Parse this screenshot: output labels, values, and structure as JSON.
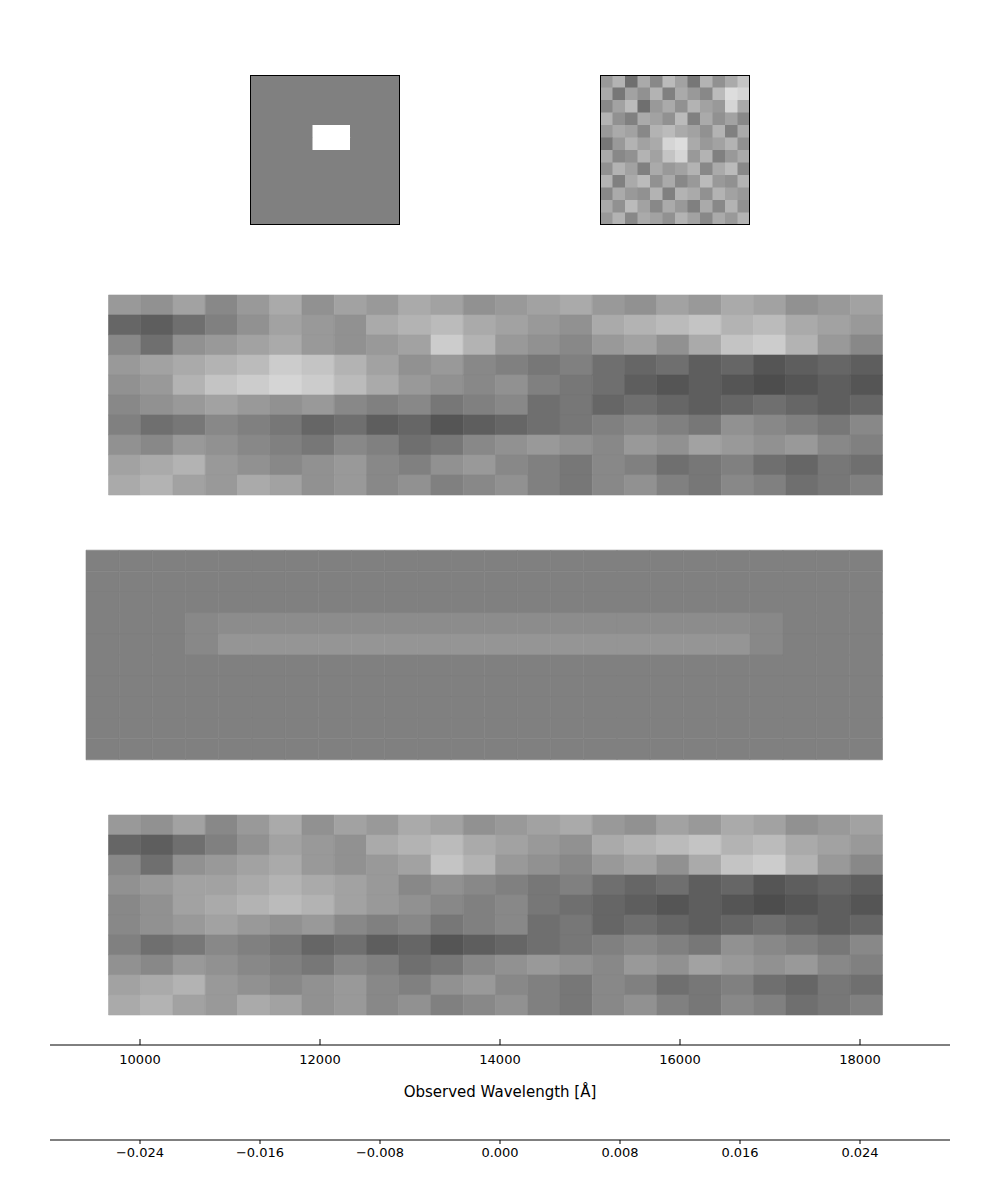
{
  "chart_data": [
    {
      "type": "image",
      "cells": [
        [
          0,
          0,
          0,
          0,
          0,
          0,
          0,
          0,
          0,
          0,
          0,
          0
        ],
        [
          0,
          0,
          0,
          0,
          0,
          0,
          0,
          0,
          0,
          0,
          0,
          0
        ],
        [
          0,
          0,
          0,
          0,
          0,
          0,
          0,
          0,
          0,
          0,
          0,
          0
        ],
        [
          0,
          0,
          0,
          0,
          0,
          0,
          0,
          0,
          0,
          0,
          0,
          0
        ],
        [
          0,
          0,
          0,
          0,
          0,
          0.03,
          0.03,
          0.03,
          0,
          0,
          0,
          0
        ],
        [
          0,
          0,
          0,
          0,
          0,
          0.03,
          0.03,
          0.03,
          0,
          0,
          0,
          0
        ],
        [
          0,
          0,
          0,
          0,
          0,
          0,
          0,
          0,
          0,
          0,
          0,
          0
        ],
        [
          0,
          0,
          0,
          0,
          0,
          0,
          0,
          0,
          0,
          0,
          0,
          0
        ],
        [
          0,
          0,
          0,
          0,
          0,
          0,
          0,
          0,
          0,
          0,
          0,
          0
        ],
        [
          0,
          0,
          0,
          0,
          0,
          0,
          0,
          0,
          0,
          0,
          0,
          0
        ],
        [
          0,
          0,
          0,
          0,
          0,
          0,
          0,
          0,
          0,
          0,
          0,
          0
        ],
        [
          0,
          0,
          0,
          0,
          0,
          0,
          0,
          0,
          0,
          0,
          0,
          0
        ]
      ]
    },
    {
      "type": "image",
      "cells": [
        [
          0.006,
          0.012,
          -0.004,
          0.01,
          0.002,
          0.014,
          0.008,
          -0.002,
          0.012,
          0.004,
          0.01,
          0.016
        ],
        [
          0.01,
          -0.002,
          0.008,
          0.004,
          0.012,
          0.0,
          0.01,
          0.006,
          0.002,
          0.014,
          0.022,
          0.02
        ],
        [
          0.002,
          0.008,
          0.014,
          -0.004,
          0.006,
          0.01,
          0.004,
          0.012,
          0.008,
          0.006,
          0.02,
          0.01
        ],
        [
          0.012,
          0.004,
          0.0,
          0.01,
          0.008,
          0.004,
          0.014,
          0.0,
          0.01,
          0.004,
          0.008,
          0.002
        ],
        [
          0.006,
          0.01,
          0.008,
          0.002,
          0.012,
          0.014,
          0.01,
          0.008,
          0.004,
          0.012,
          0.0,
          0.01
        ],
        [
          -0.002,
          0.006,
          0.012,
          0.008,
          0.01,
          0.02,
          0.022,
          0.01,
          0.006,
          0.008,
          0.012,
          0.004
        ],
        [
          0.01,
          0.002,
          0.004,
          0.012,
          0.008,
          0.016,
          0.02,
          0.006,
          0.012,
          0.0,
          0.006,
          0.01
        ],
        [
          0.004,
          0.012,
          0.008,
          0.0,
          0.01,
          0.006,
          0.008,
          0.012,
          0.002,
          0.01,
          0.014,
          0.002
        ],
        [
          0.012,
          0.0,
          0.01,
          0.014,
          0.004,
          0.01,
          0.002,
          0.006,
          0.014,
          0.006,
          0.004,
          0.012
        ],
        [
          0.002,
          0.01,
          0.006,
          0.004,
          0.012,
          0.0,
          0.012,
          0.01,
          0.004,
          0.012,
          0.008,
          0.006
        ],
        [
          0.01,
          0.004,
          0.014,
          0.008,
          0.002,
          0.01,
          0.006,
          0.0,
          0.01,
          0.002,
          0.012,
          0.004
        ],
        [
          0.006,
          0.012,
          0.002,
          0.01,
          0.008,
          0.004,
          0.012,
          0.008,
          0.002,
          0.01,
          0.006,
          0.012
        ]
      ]
    },
    {
      "type": "heatmap",
      "xlim": [
        9000,
        19000
      ],
      "xticks": [
        10000,
        12000,
        14000,
        16000,
        18000
      ],
      "extent": [
        9650,
        18250
      ],
      "tick_labels": false,
      "cells": [
        [
          0.006,
          0.004,
          0.008,
          0.002,
          0.006,
          0.01,
          0.004,
          0.008,
          0.006,
          0.01,
          0.008,
          0.004,
          0.006,
          0.008,
          0.01,
          0.006,
          0.004,
          0.008,
          0.006,
          0.01,
          0.008,
          0.004,
          0.006,
          0.008
        ],
        [
          -0.006,
          -0.008,
          -0.004,
          0.0,
          0.004,
          0.008,
          0.006,
          0.004,
          0.01,
          0.012,
          0.014,
          0.01,
          0.008,
          0.006,
          0.004,
          0.01,
          0.012,
          0.014,
          0.016,
          0.012,
          0.014,
          0.01,
          0.008,
          0.006
        ],
        [
          0.002,
          -0.004,
          0.004,
          0.006,
          0.008,
          0.01,
          0.006,
          0.004,
          0.006,
          0.008,
          0.018,
          0.012,
          0.006,
          0.004,
          0.002,
          0.006,
          0.008,
          0.004,
          0.01,
          0.016,
          0.018,
          0.012,
          0.006,
          0.002
        ],
        [
          0.006,
          0.008,
          0.01,
          0.012,
          0.014,
          0.018,
          0.016,
          0.012,
          0.008,
          0.004,
          0.006,
          0.002,
          0.0,
          -0.002,
          0.0,
          -0.004,
          -0.006,
          -0.004,
          -0.008,
          -0.006,
          -0.01,
          -0.008,
          -0.006,
          -0.008
        ],
        [
          0.004,
          0.006,
          0.012,
          0.016,
          0.018,
          0.02,
          0.018,
          0.014,
          0.01,
          0.006,
          0.004,
          0.002,
          0.004,
          0.0,
          -0.002,
          -0.004,
          -0.008,
          -0.01,
          -0.008,
          -0.01,
          -0.012,
          -0.01,
          -0.008,
          -0.01
        ],
        [
          0.002,
          0.004,
          0.006,
          0.008,
          0.006,
          0.004,
          0.006,
          0.002,
          0.0,
          0.002,
          -0.002,
          0.0,
          0.002,
          -0.004,
          -0.002,
          -0.006,
          -0.004,
          -0.006,
          -0.008,
          -0.006,
          -0.004,
          -0.006,
          -0.008,
          -0.006
        ],
        [
          0.0,
          -0.004,
          -0.002,
          0.002,
          0.0,
          -0.002,
          -0.006,
          -0.004,
          -0.008,
          -0.006,
          -0.01,
          -0.008,
          -0.006,
          -0.004,
          -0.002,
          0.0,
          0.002,
          0.0,
          -0.002,
          0.004,
          0.002,
          0.0,
          -0.002,
          0.002
        ],
        [
          0.004,
          0.002,
          0.006,
          0.004,
          0.002,
          0.0,
          -0.002,
          0.002,
          0.0,
          -0.004,
          -0.002,
          0.002,
          0.004,
          0.006,
          0.004,
          0.002,
          0.006,
          0.004,
          0.008,
          0.006,
          0.004,
          0.006,
          0.002,
          0.0
        ],
        [
          0.008,
          0.01,
          0.012,
          0.006,
          0.004,
          0.002,
          0.004,
          0.006,
          0.002,
          0.0,
          0.004,
          0.006,
          0.002,
          0.0,
          -0.002,
          0.002,
          0.0,
          -0.004,
          -0.002,
          0.0,
          -0.004,
          -0.006,
          -0.002,
          -0.004
        ],
        [
          0.01,
          0.012,
          0.008,
          0.006,
          0.01,
          0.008,
          0.004,
          0.006,
          0.002,
          0.004,
          0.0,
          0.002,
          0.004,
          0.0,
          -0.002,
          0.002,
          0.004,
          0.0,
          -0.002,
          0.002,
          0.0,
          -0.004,
          -0.002,
          0.0
        ]
      ]
    },
    {
      "type": "heatmap",
      "xlim": [
        9000,
        19000
      ],
      "xticks": [
        10000,
        12000,
        14000,
        16000,
        18000
      ],
      "extent": [
        9400,
        18250
      ],
      "tick_labels": false,
      "cells": [
        [
          0,
          0,
          0,
          0,
          0,
          0,
          0,
          0,
          0,
          0,
          0,
          0,
          0,
          0,
          0,
          0,
          0,
          0,
          0,
          0,
          0,
          0,
          0,
          0
        ],
        [
          0,
          0,
          0,
          0,
          0,
          0,
          0,
          0,
          0,
          0,
          0,
          0,
          0,
          0,
          0,
          0,
          0,
          0,
          0,
          0,
          0,
          0,
          0,
          0
        ],
        [
          0,
          0,
          0,
          0,
          0,
          0,
          0,
          0,
          0,
          0,
          0,
          0,
          0,
          0,
          0,
          0,
          0,
          0,
          0,
          0,
          0,
          0,
          0,
          0
        ],
        [
          0,
          0,
          0,
          0.002,
          0.003,
          0.003,
          0.003,
          0.003,
          0.003,
          0.003,
          0.003,
          0.003,
          0.003,
          0.003,
          0.003,
          0.003,
          0.003,
          0.003,
          0.003,
          0.003,
          0.002,
          0,
          0,
          0
        ],
        [
          0,
          0,
          0,
          0.002,
          0.005,
          0.005,
          0.005,
          0.005,
          0.005,
          0.005,
          0.005,
          0.005,
          0.005,
          0.005,
          0.005,
          0.005,
          0.005,
          0.005,
          0.005,
          0.005,
          0.002,
          0,
          0,
          0
        ],
        [
          0,
          0,
          0,
          0,
          0,
          0,
          0,
          0,
          0,
          0,
          0,
          0,
          0,
          0,
          0,
          0,
          0,
          0,
          0,
          0,
          0,
          0,
          0,
          0
        ],
        [
          0,
          0,
          0,
          0,
          0,
          0,
          0,
          0,
          0,
          0,
          0,
          0,
          0,
          0,
          0,
          0,
          0,
          0,
          0,
          0,
          0,
          0,
          0,
          0
        ],
        [
          0,
          0,
          0,
          0,
          0,
          0,
          0,
          0,
          0,
          0,
          0,
          0,
          0,
          0,
          0,
          0,
          0,
          0,
          0,
          0,
          0,
          0,
          0,
          0
        ],
        [
          0,
          0,
          0,
          0,
          0,
          0,
          0,
          0,
          0,
          0,
          0,
          0,
          0,
          0,
          0,
          0,
          0,
          0,
          0,
          0,
          0,
          0,
          0,
          0
        ],
        [
          0,
          0,
          0,
          0,
          0,
          0,
          0,
          0,
          0,
          0,
          0,
          0,
          0,
          0,
          0,
          0,
          0,
          0,
          0,
          0,
          0,
          0,
          0,
          0
        ]
      ]
    },
    {
      "type": "heatmap",
      "xlim": [
        9000,
        19000
      ],
      "xticks": [
        10000,
        12000,
        14000,
        16000,
        18000
      ],
      "extent": [
        9650,
        18250
      ],
      "tick_labels": "x",
      "x_label": "Observed Wavelength [Å]",
      "cells": [
        [
          0.006,
          0.004,
          0.008,
          0.002,
          0.006,
          0.01,
          0.004,
          0.008,
          0.006,
          0.01,
          0.008,
          0.004,
          0.006,
          0.008,
          0.01,
          0.006,
          0.004,
          0.008,
          0.006,
          0.01,
          0.008,
          0.004,
          0.006,
          0.008
        ],
        [
          -0.006,
          -0.008,
          -0.004,
          0.0,
          0.004,
          0.008,
          0.006,
          0.004,
          0.01,
          0.012,
          0.014,
          0.01,
          0.008,
          0.006,
          0.004,
          0.01,
          0.012,
          0.014,
          0.016,
          0.012,
          0.014,
          0.01,
          0.008,
          0.006
        ],
        [
          0.002,
          -0.004,
          0.004,
          0.006,
          0.008,
          0.01,
          0.006,
          0.004,
          0.006,
          0.008,
          0.016,
          0.012,
          0.006,
          0.004,
          0.002,
          0.006,
          0.008,
          0.004,
          0.01,
          0.016,
          0.018,
          0.012,
          0.006,
          0.002
        ],
        [
          0.004,
          0.006,
          0.008,
          0.008,
          0.01,
          0.012,
          0.01,
          0.008,
          0.006,
          0.002,
          0.004,
          0.002,
          0.0,
          -0.002,
          0.0,
          -0.004,
          -0.006,
          -0.004,
          -0.008,
          -0.006,
          -0.01,
          -0.008,
          -0.006,
          -0.008
        ],
        [
          0.002,
          0.004,
          0.008,
          0.01,
          0.012,
          0.014,
          0.012,
          0.008,
          0.006,
          0.004,
          0.002,
          0.0,
          0.002,
          -0.002,
          -0.004,
          -0.006,
          -0.008,
          -0.01,
          -0.008,
          -0.01,
          -0.012,
          -0.01,
          -0.008,
          -0.01
        ],
        [
          0.002,
          0.004,
          0.006,
          0.008,
          0.006,
          0.004,
          0.006,
          0.002,
          0.0,
          0.002,
          -0.002,
          0.0,
          0.002,
          -0.004,
          -0.002,
          -0.006,
          -0.004,
          -0.006,
          -0.008,
          -0.006,
          -0.004,
          -0.006,
          -0.008,
          -0.006
        ],
        [
          0.0,
          -0.004,
          -0.002,
          0.002,
          0.0,
          -0.002,
          -0.006,
          -0.004,
          -0.008,
          -0.006,
          -0.01,
          -0.008,
          -0.006,
          -0.004,
          -0.002,
          0.0,
          0.002,
          0.0,
          -0.002,
          0.004,
          0.002,
          0.0,
          -0.002,
          0.002
        ],
        [
          0.004,
          0.002,
          0.006,
          0.004,
          0.002,
          0.0,
          -0.002,
          0.002,
          0.0,
          -0.004,
          -0.002,
          0.002,
          0.004,
          0.006,
          0.004,
          0.002,
          0.006,
          0.004,
          0.008,
          0.006,
          0.004,
          0.006,
          0.002,
          0.0
        ],
        [
          0.008,
          0.01,
          0.012,
          0.006,
          0.004,
          0.002,
          0.004,
          0.006,
          0.002,
          0.0,
          0.004,
          0.006,
          0.002,
          0.0,
          -0.002,
          0.002,
          0.0,
          -0.004,
          -0.002,
          0.0,
          -0.004,
          -0.006,
          -0.002,
          -0.004
        ],
        [
          0.01,
          0.012,
          0.008,
          0.006,
          0.01,
          0.008,
          0.004,
          0.006,
          0.002,
          0.004,
          0.0,
          0.002,
          0.004,
          0.0,
          -0.002,
          0.002,
          0.004,
          0.0,
          -0.002,
          0.002,
          0.0,
          -0.004,
          -0.002,
          0.0
        ]
      ]
    },
    {
      "type": "colorbar",
      "xlim": [
        -0.03,
        0.03
      ],
      "xticks": [
        {
          "value": -0.024,
          "label": "−0.024"
        },
        {
          "value": -0.016,
          "label": "−0.016"
        },
        {
          "value": -0.008,
          "label": "−0.008"
        },
        {
          "value": 0,
          "label": "0.000"
        },
        0.008,
        0.016,
        0.024
      ]
    }
  ]
}
